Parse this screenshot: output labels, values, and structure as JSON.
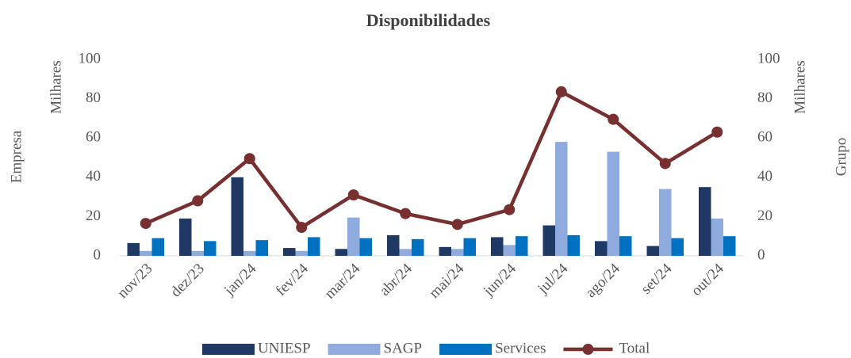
{
  "chart_data": {
    "type": "bar",
    "title": "Disponibilidades",
    "y_label": "Empresa",
    "y_units": "Milhares",
    "y2_label": "Grupo",
    "y2_units": "Milhares",
    "categories": [
      "nov/23",
      "dez/23",
      "jan/24",
      "fev/24",
      "mar/24",
      "abr/24",
      "mai/24",
      "jun/24",
      "jul/24",
      "ago/24",
      "set/24",
      "out/24"
    ],
    "series": [
      {
        "name": "UNIESP",
        "color": "#1f3864",
        "values": [
          6.5,
          19,
          40,
          4,
          3.5,
          10.5,
          4.5,
          9.5,
          15.5,
          7.5,
          5,
          35
        ]
      },
      {
        "name": "SAGP",
        "color": "#8faadc",
        "values": [
          2.5,
          2.5,
          2.5,
          2.5,
          19.5,
          3.5,
          3.5,
          5.5,
          58,
          53,
          34,
          19
        ]
      },
      {
        "name": "Services",
        "color": "#0070c0",
        "values": [
          9,
          7.5,
          8,
          9.5,
          9,
          8.5,
          9,
          10,
          10.5,
          10,
          9,
          10
        ]
      },
      {
        "name": "Total",
        "color": "#772f2f",
        "type": "line",
        "axis": "y2",
        "values": [
          16.5,
          28,
          49.5,
          14.5,
          31,
          21.5,
          16,
          23.5,
          83.5,
          69.5,
          47,
          63
        ]
      }
    ],
    "ylim": [
      0,
      100
    ],
    "yticks": [
      0,
      20,
      40,
      60,
      80,
      100
    ],
    "y2lim": [
      0,
      100
    ],
    "y2ticks": [
      0,
      20,
      40,
      60,
      80,
      100
    ],
    "grid": false,
    "legend": "bottom"
  }
}
